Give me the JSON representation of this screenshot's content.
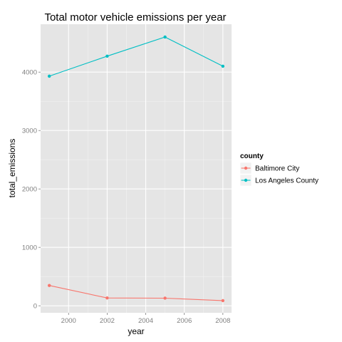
{
  "chart_data": {
    "type": "line",
    "title": "Total motor vehicle emissions per year",
    "xlabel": "year",
    "ylabel": "total_emissions",
    "x": [
      1999,
      2002,
      2005,
      2008
    ],
    "xlim": [
      1998.55,
      2008.45
    ],
    "ylim": [
      -120,
      4820
    ],
    "x_ticks": [
      2000,
      2002,
      2004,
      2006,
      2008
    ],
    "y_ticks": [
      0,
      1000,
      2000,
      3000,
      4000
    ],
    "grid": true,
    "legend": {
      "title": "county",
      "position": "right"
    },
    "series": [
      {
        "name": "Baltimore City",
        "color": "#f8766d",
        "values": [
          346.8,
          134.3,
          130.4,
          88.3
        ]
      },
      {
        "name": "Los Angeles County",
        "color": "#00bfc4",
        "values": [
          3931,
          4274,
          4601,
          4101
        ]
      }
    ]
  }
}
